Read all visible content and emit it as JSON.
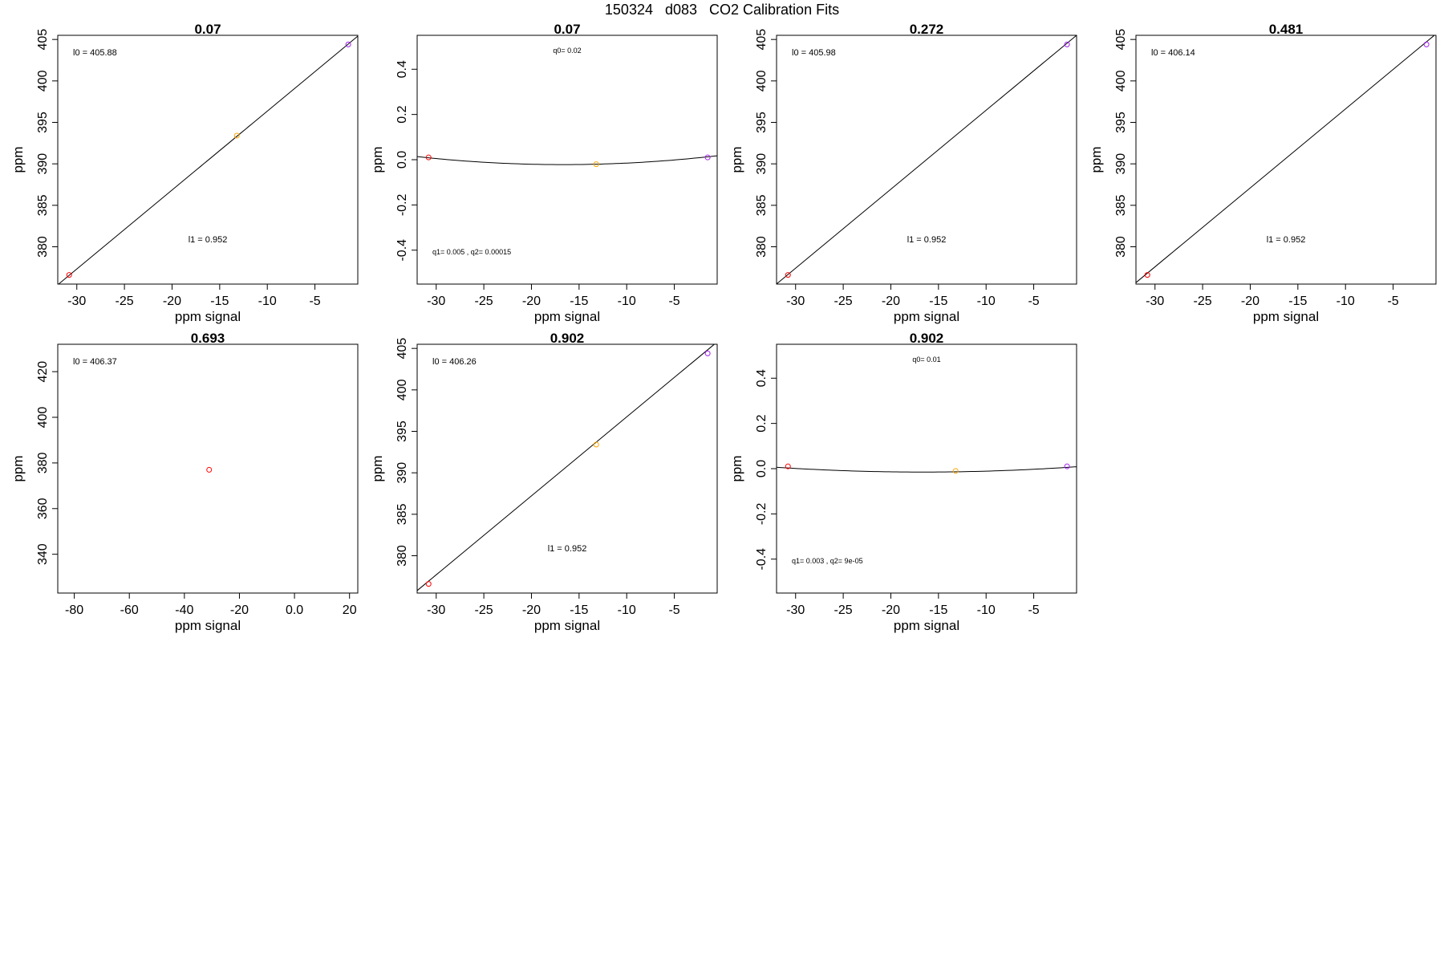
{
  "title": "150324   d083   CO2 Calibration Fits",
  "colors": {
    "low": "#ff0000",
    "mid": "#ffa500",
    "high": "#a020f0",
    "line": "#000000"
  },
  "chart_data": [
    {
      "type": "scatter",
      "panel": "linear",
      "title": "0.07",
      "xlabel": "ppm signal",
      "ylabel": "ppm",
      "xlim": [
        -32,
        -0.5
      ],
      "ylim": [
        375.5,
        405.5
      ],
      "xticks": [
        -30,
        -25,
        -20,
        -15,
        -10,
        -5
      ],
      "yticks": [
        380,
        385,
        390,
        395,
        400,
        405
      ],
      "points": [
        {
          "x": -30.8,
          "y": 376.6,
          "color": "low"
        },
        {
          "x": -13.2,
          "y": 393.4,
          "color": "mid"
        },
        {
          "x": -1.5,
          "y": 404.4,
          "color": "high"
        }
      ],
      "fit": {
        "kind": "linear",
        "intercept": 405.88,
        "slope": 0.952
      },
      "annotations": [
        {
          "text": "l0 =  405.88",
          "pos": "top-left",
          "size": "normal"
        },
        {
          "text": "l1 =  0.952",
          "pos": "middle-bottom",
          "size": "normal"
        }
      ]
    },
    {
      "type": "scatter",
      "panel": "quadratic",
      "title": "0.07",
      "xlabel": "ppm signal",
      "ylabel": "ppm",
      "xlim": [
        -32,
        -0.5
      ],
      "ylim": [
        -0.55,
        0.55
      ],
      "xticks": [
        -30,
        -25,
        -20,
        -15,
        -10,
        -5
      ],
      "yticks": [
        -0.4,
        -0.2,
        0.0,
        0.2,
        0.4
      ],
      "points": [
        {
          "x": -30.8,
          "y": 0.01,
          "color": "low"
        },
        {
          "x": -13.2,
          "y": -0.02,
          "color": "mid"
        },
        {
          "x": -1.5,
          "y": 0.01,
          "color": "high"
        }
      ],
      "fit": {
        "kind": "quadratic",
        "q0": 0.02,
        "q1": 0.005,
        "q2": 0.00015
      },
      "annotations": [
        {
          "text": "q0= 0.02",
          "pos": "top-center",
          "size": "small"
        },
        {
          "text": "q1= 0.005 , q2= 0.00015",
          "pos": "bottom-left",
          "size": "small"
        }
      ]
    },
    {
      "type": "scatter",
      "panel": "linear",
      "title": "0.272",
      "xlabel": "ppm signal",
      "ylabel": "ppm",
      "xlim": [
        -32,
        -0.5
      ],
      "ylim": [
        375.5,
        405.5
      ],
      "xticks": [
        -30,
        -25,
        -20,
        -15,
        -10,
        -5
      ],
      "yticks": [
        380,
        385,
        390,
        395,
        400,
        405
      ],
      "points": [
        {
          "x": -30.8,
          "y": 376.6,
          "color": "low"
        },
        {
          "x": -1.5,
          "y": 404.4,
          "color": "high"
        }
      ],
      "fit": {
        "kind": "linear",
        "intercept": 405.98,
        "slope": 0.952
      },
      "annotations": [
        {
          "text": "l0 =  405.98",
          "pos": "top-left",
          "size": "normal"
        },
        {
          "text": "l1 =  0.952",
          "pos": "middle-bottom",
          "size": "normal"
        }
      ]
    },
    {
      "type": "scatter",
      "panel": "linear",
      "title": "0.481",
      "xlabel": "ppm signal",
      "ylabel": "ppm",
      "xlim": [
        -32,
        -0.5
      ],
      "ylim": [
        375.5,
        405.5
      ],
      "xticks": [
        -30,
        -25,
        -20,
        -15,
        -10,
        -5
      ],
      "yticks": [
        380,
        385,
        390,
        395,
        400,
        405
      ],
      "points": [
        {
          "x": -30.8,
          "y": 376.6,
          "color": "low"
        },
        {
          "x": -1.5,
          "y": 404.4,
          "color": "high"
        }
      ],
      "fit": {
        "kind": "linear",
        "intercept": 406.14,
        "slope": 0.952
      },
      "annotations": [
        {
          "text": "l0 =  406.14",
          "pos": "top-left",
          "size": "normal"
        },
        {
          "text": "l1 =  0.952",
          "pos": "middle-bottom",
          "size": "normal"
        }
      ]
    },
    {
      "type": "scatter",
      "panel": "point",
      "title": "0.693",
      "xlabel": "ppm signal",
      "ylabel": "ppm",
      "xlim": [
        -86,
        23
      ],
      "ylim": [
        323,
        432
      ],
      "xticks": [
        -80,
        -60,
        -40,
        -20,
        0,
        20
      ],
      "yticks": [
        340,
        360,
        380,
        400,
        420
      ],
      "points": [
        {
          "x": -31,
          "y": 377,
          "color": "low"
        }
      ],
      "fit": null,
      "annotations": [
        {
          "text": "l0 =  406.37",
          "pos": "top-left",
          "size": "normal"
        }
      ]
    },
    {
      "type": "scatter",
      "panel": "linear",
      "title": "0.902",
      "xlabel": "ppm signal",
      "ylabel": "ppm",
      "xlim": [
        -32,
        -0.5
      ],
      "ylim": [
        375.5,
        405.5
      ],
      "xticks": [
        -30,
        -25,
        -20,
        -15,
        -10,
        -5
      ],
      "yticks": [
        380,
        385,
        390,
        395,
        400,
        405
      ],
      "points": [
        {
          "x": -30.8,
          "y": 376.6,
          "color": "low"
        },
        {
          "x": -13.2,
          "y": 393.4,
          "color": "mid"
        },
        {
          "x": -1.5,
          "y": 404.4,
          "color": "high"
        }
      ],
      "fit": {
        "kind": "linear",
        "intercept": 406.26,
        "slope": 0.952
      },
      "annotations": [
        {
          "text": "l0 =  406.26",
          "pos": "top-left",
          "size": "normal"
        },
        {
          "text": "l1 =  0.952",
          "pos": "middle-bottom",
          "size": "normal"
        }
      ]
    },
    {
      "type": "scatter",
      "panel": "quadratic",
      "title": "0.902",
      "xlabel": "ppm signal",
      "ylabel": "ppm",
      "xlim": [
        -32,
        -0.5
      ],
      "ylim": [
        -0.55,
        0.55
      ],
      "xticks": [
        -30,
        -25,
        -20,
        -15,
        -10,
        -5
      ],
      "yticks": [
        -0.4,
        -0.2,
        0.0,
        0.2,
        0.4
      ],
      "points": [
        {
          "x": -30.8,
          "y": 0.01,
          "color": "low"
        },
        {
          "x": -13.2,
          "y": -0.01,
          "color": "mid"
        },
        {
          "x": -1.5,
          "y": 0.01,
          "color": "high"
        }
      ],
      "fit": {
        "kind": "quadratic",
        "q0": 0.01,
        "q1": 0.003,
        "q2": 9e-05
      },
      "annotations": [
        {
          "text": "q0= 0.01",
          "pos": "top-center",
          "size": "small"
        },
        {
          "text": "q1= 0.003 , q2= 9e-05",
          "pos": "bottom-left",
          "size": "small"
        }
      ]
    }
  ]
}
